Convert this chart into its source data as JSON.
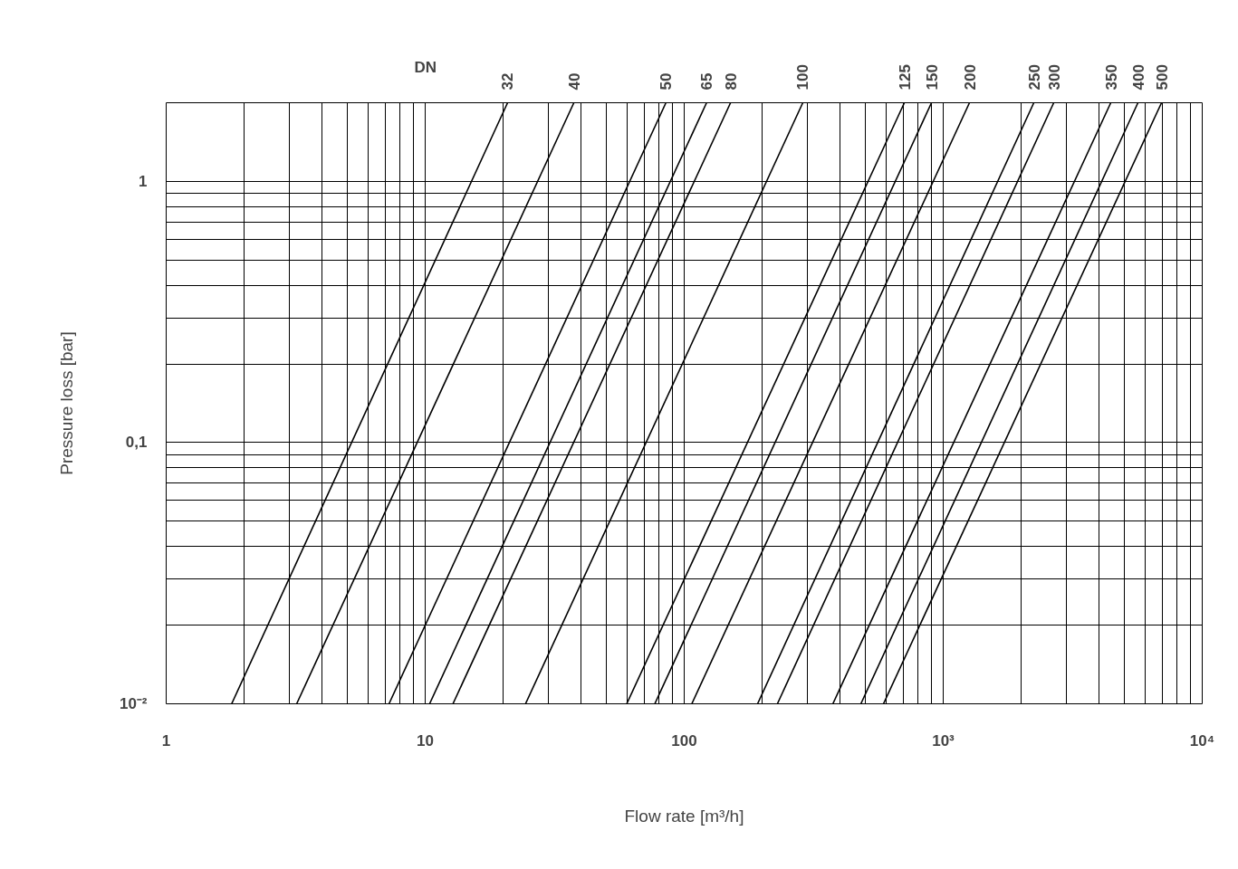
{
  "chart_data": {
    "type": "line",
    "xlabel": "Flow rate [m³/h]",
    "ylabel": "Pressure loss [bar]",
    "annotations": [
      "DN"
    ],
    "log": "xy",
    "grid": true,
    "marker": "none",
    "line_style": "solid",
    "xlim": [
      1,
      10000
    ],
    "ylim": [
      0.01,
      2
    ],
    "xticks": [
      {
        "value": 1,
        "label": "1"
      },
      {
        "value": 10,
        "label": "10"
      },
      {
        "value": 100,
        "label": "100"
      },
      {
        "value": 1000,
        "label": "10³"
      },
      {
        "value": 10000,
        "label": "10⁴"
      }
    ],
    "yticks": [
      {
        "value": 0.01,
        "label": "10⁻²"
      },
      {
        "value": 0.1,
        "label": "0,1"
      },
      {
        "value": 1,
        "label": "1"
      }
    ],
    "series": [
      {
        "name": "32",
        "color": "#000000",
        "x": [
          1.79,
          20.8
        ],
        "values": [
          0.01,
          2
        ]
      },
      {
        "name": "40",
        "color": "#000000",
        "x": [
          3.19,
          37.5
        ],
        "values": [
          0.01,
          2
        ]
      },
      {
        "name": "50",
        "color": "#000000",
        "x": [
          7.25,
          85
        ],
        "values": [
          0.01,
          2
        ]
      },
      {
        "name": "65",
        "color": "#000000",
        "x": [
          10.4,
          122
        ],
        "values": [
          0.01,
          2
        ]
      },
      {
        "name": "80",
        "color": "#000000",
        "x": [
          12.8,
          151
        ],
        "values": [
          0.01,
          2
        ]
      },
      {
        "name": "100",
        "color": "#000000",
        "x": [
          24.4,
          287
        ],
        "values": [
          0.01,
          2
        ]
      },
      {
        "name": "125",
        "color": "#000000",
        "x": [
          60,
          708
        ],
        "values": [
          0.01,
          2
        ]
      },
      {
        "name": "150",
        "color": "#000000",
        "x": [
          77,
          901
        ],
        "values": [
          0.01,
          2
        ]
      },
      {
        "name": "200",
        "color": "#000000",
        "x": [
          107,
          1263
        ],
        "values": [
          0.01,
          2
        ]
      },
      {
        "name": "250",
        "color": "#000000",
        "x": [
          192,
          2238
        ],
        "values": [
          0.01,
          2
        ]
      },
      {
        "name": "300",
        "color": "#000000",
        "x": [
          229,
          2671
        ],
        "values": [
          0.01,
          2
        ]
      },
      {
        "name": "350",
        "color": "#000000",
        "x": [
          375,
          4436
        ],
        "values": [
          0.01,
          2
        ]
      },
      {
        "name": "400",
        "color": "#000000",
        "x": [
          481,
          5647
        ],
        "values": [
          0.01,
          2
        ]
      },
      {
        "name": "500",
        "color": "#000000",
        "x": [
          588,
          6965
        ],
        "values": [
          0.01,
          2
        ]
      }
    ]
  }
}
